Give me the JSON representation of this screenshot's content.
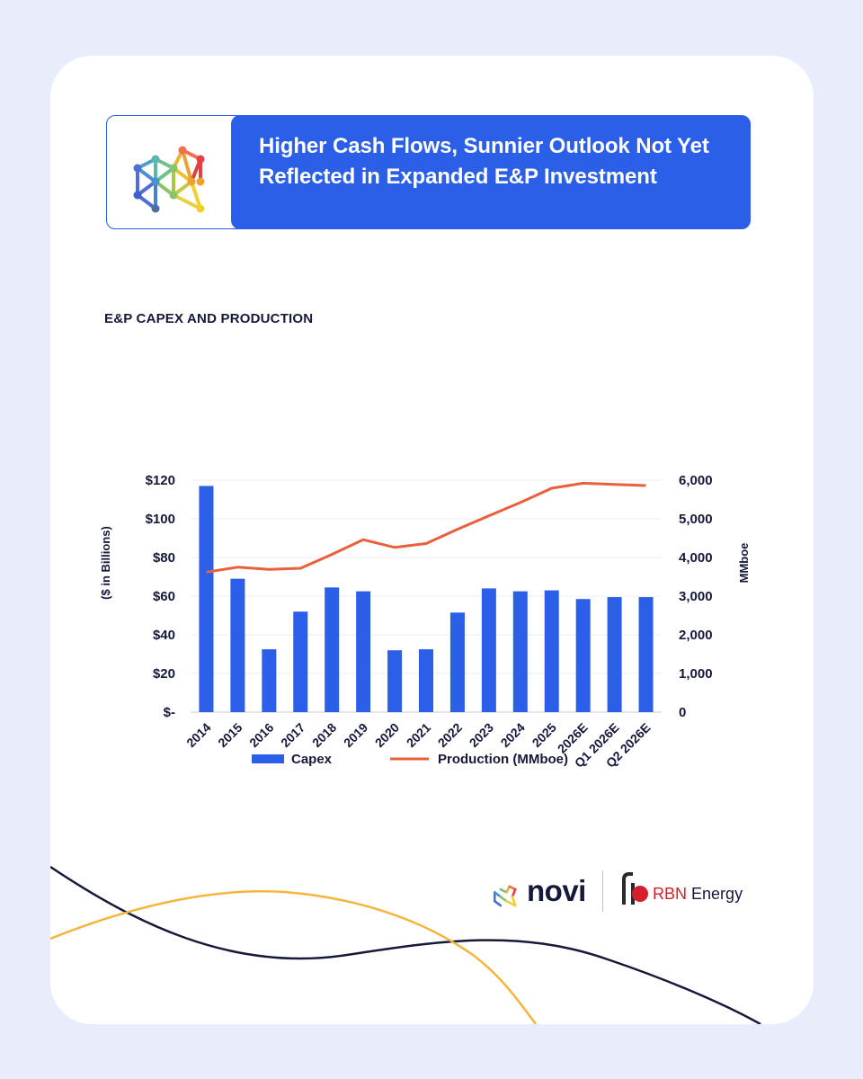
{
  "header": {
    "title": "Higher Cash Flows, Sunnier Outlook Not Yet Reflected in Expanded E&P Investment"
  },
  "colors": {
    "background": "#e9ecfb",
    "title_bar": "#2b5fe8",
    "capex_bar": "#2b5fe8",
    "production_line": "#e8603c",
    "wave_dark": "#15193a",
    "wave_orange": "#f5b43c"
  },
  "chart_data": {
    "type": "bar",
    "title": "E&P CAPEX AND PRODUCTION",
    "categories": [
      "2014",
      "2015",
      "2016",
      "2017",
      "2018",
      "2019",
      "2020",
      "2021",
      "2022",
      "2023",
      "2024",
      "2025",
      "2026E",
      "Q1 2026E",
      "Q2 2026E"
    ],
    "series": [
      {
        "name": "Capex",
        "type": "bar",
        "axis": "left",
        "values": [
          117,
          69,
          32.5,
          52,
          64.5,
          62.5,
          32,
          32.5,
          51.5,
          64,
          62.5,
          63,
          58.5,
          59.5,
          59.5
        ]
      },
      {
        "name": "Production (MMboe)",
        "type": "line",
        "axis": "right",
        "values": [
          3620,
          3750,
          3690,
          3720,
          4080,
          4460,
          4260,
          4360,
          4730,
          5080,
          5420,
          5790,
          5920,
          5890,
          5860
        ]
      }
    ],
    "ylabel": "($ in Billions)",
    "ylabel_right": "MMboe",
    "ylim": [
      0,
      120
    ],
    "ylim_right": [
      0,
      6000
    ],
    "yticks": [
      "$-",
      "$20",
      "$40",
      "$60",
      "$80",
      "$100",
      "$120"
    ],
    "yticks_right": [
      "0",
      "1,000",
      "2,000",
      "3,000",
      "4,000",
      "5,000",
      "6,000"
    ],
    "grid": true,
    "legend": "bottom"
  },
  "footer": {
    "novi_label": "novi",
    "rbn_mark": "RBN",
    "rbn_word": "Energy"
  }
}
